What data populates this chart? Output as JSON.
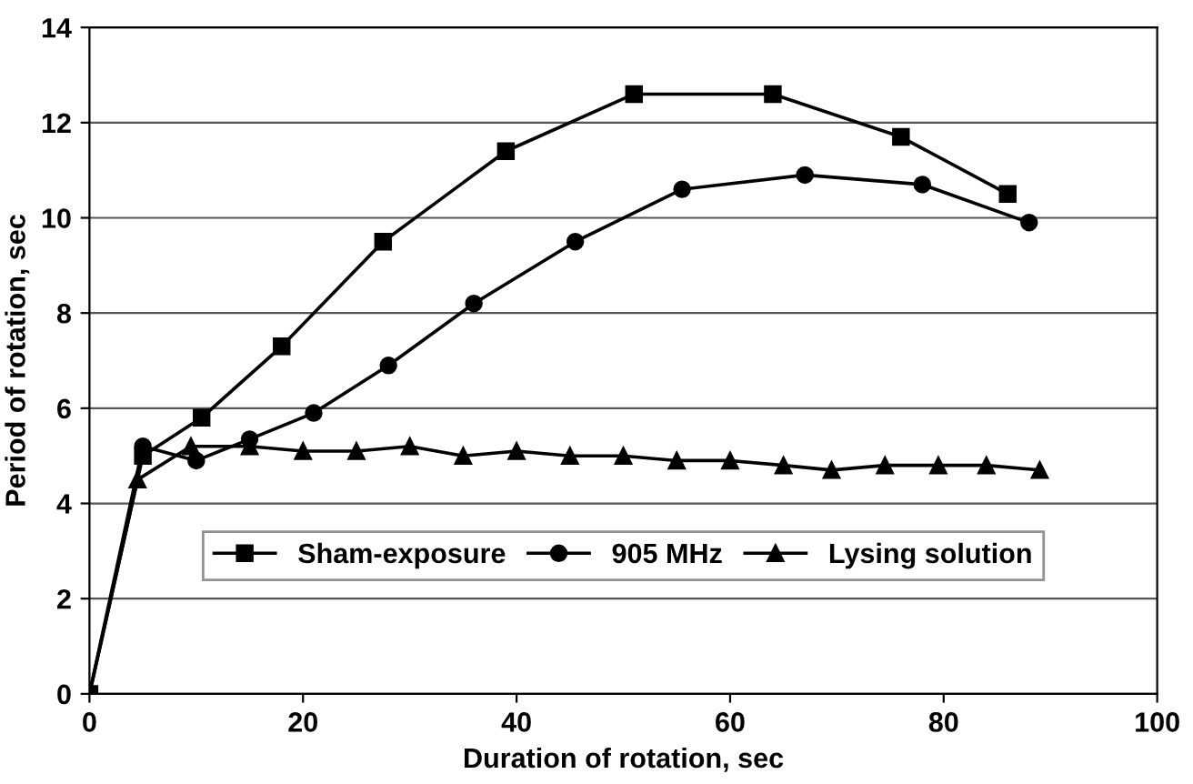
{
  "chart_data": {
    "type": "line",
    "xlabel": "Duration of rotation, sec",
    "ylabel": "Period of rotation, sec",
    "xlim": [
      0,
      100
    ],
    "xticks": [
      0,
      20,
      40,
      60,
      80,
      100
    ],
    "ylim": [
      0,
      14
    ],
    "yticks": [
      0,
      2,
      4,
      6,
      8,
      10,
      12,
      14
    ],
    "grid": "y",
    "legend": "bottom",
    "line_style": "solid",
    "series": [
      {
        "name": "Sham-exposure",
        "color": "#000000",
        "marker": "square",
        "x": [
          0,
          5,
          10.5,
          18,
          27.5,
          39,
          51,
          64,
          76,
          86
        ],
        "values": [
          0,
          5.0,
          5.8,
          7.3,
          9.5,
          11.4,
          12.6,
          12.6,
          11.7,
          10.5
        ]
      },
      {
        "name": "905 MHz",
        "color": "#000000",
        "marker": "circle",
        "x": [
          0,
          5,
          10,
          15,
          21,
          28,
          36,
          45.5,
          55.5,
          67,
          78,
          88
        ],
        "values": [
          0,
          5.2,
          4.9,
          5.35,
          5.9,
          6.9,
          8.2,
          9.5,
          10.6,
          10.9,
          10.7,
          9.9
        ]
      },
      {
        "name": "Lysing solution",
        "color": "#000000",
        "marker": "triangle",
        "x": [
          0,
          4.5,
          9.5,
          15,
          20,
          25,
          30,
          35,
          40,
          45,
          50,
          55,
          60,
          65,
          69.5,
          74.5,
          79.5,
          84,
          89
        ],
        "values": [
          0,
          4.5,
          5.2,
          5.2,
          5.1,
          5.1,
          5.2,
          5.0,
          5.1,
          5.0,
          5.0,
          4.9,
          4.9,
          4.8,
          4.7,
          4.8,
          4.8,
          4.8,
          4.7
        ]
      }
    ]
  }
}
